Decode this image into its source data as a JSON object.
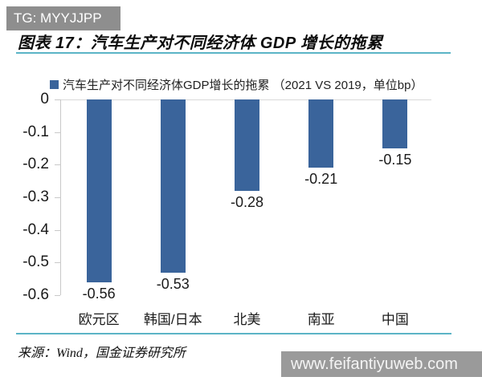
{
  "watermarks": {
    "top": "TG: MYYJJPP",
    "bottom": "www.feifantiyuweb.com"
  },
  "header": {
    "title": "图表 17：汽车生产对不同经济体 GDP 增长的拖累"
  },
  "footer": {
    "source": "来源：Wind，国金证券研究所"
  },
  "colors": {
    "bar": "#3A649B",
    "divider_teal": "#5BB4C6",
    "axis_gray": "#c9c9c9",
    "watermark_gray": "#8e8e8e"
  },
  "chart_data": {
    "type": "bar",
    "title": "汽车生产对不同经济体GDP增长的拖累",
    "legend": "汽车生产对不同经济体GDP增长的拖累 （2021 VS 2019，单位bp）",
    "legend_position": "top-left",
    "categories": [
      "欧元区",
      "韩国/日本",
      "北美",
      "南亚",
      "中国"
    ],
    "values": [
      -0.56,
      -0.53,
      -0.28,
      -0.21,
      -0.15
    ],
    "data_labels": [
      "-0.56",
      "-0.53",
      "-0.28",
      "-0.21",
      "-0.15"
    ],
    "xlabel": "",
    "ylabel": "",
    "ylim": [
      -0.6,
      0
    ],
    "ytick_labels": [
      "0",
      "-0.1",
      "-0.2",
      "-0.3",
      "-0.4",
      "-0.5",
      "-0.6"
    ],
    "ytick_values": [
      0,
      -0.1,
      -0.2,
      -0.3,
      -0.4,
      -0.5,
      -0.6
    ],
    "grid": false
  }
}
